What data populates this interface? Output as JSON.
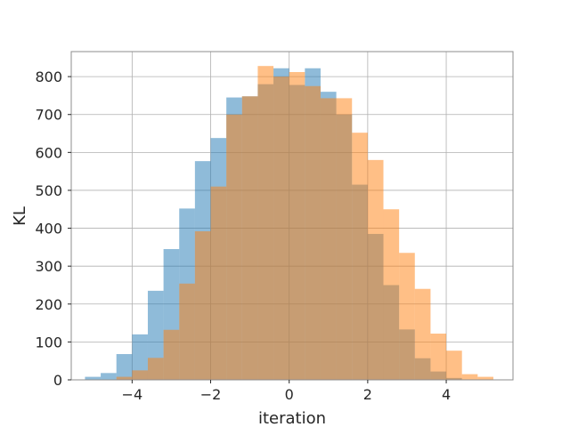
{
  "chart_data": {
    "type": "bar",
    "title": "",
    "xlabel": "iteration",
    "ylabel": "KL",
    "xlim": [
      -5.55,
      5.7
    ],
    "ylim": [
      0,
      866
    ],
    "xticks": [
      -4,
      -2,
      0,
      2,
      4
    ],
    "xtick_labels": [
      "−4",
      "−2",
      "0",
      "2",
      "4"
    ],
    "yticks": [
      0,
      100,
      200,
      300,
      400,
      500,
      600,
      700,
      800
    ],
    "ytick_labels": [
      "0",
      "100",
      "200",
      "300",
      "400",
      "500",
      "600",
      "700",
      "800"
    ],
    "grid": true,
    "legend": "none",
    "series": [
      {
        "color": "#1f77b4",
        "opacity": 0.5,
        "bins": [
          [
            -5.2,
            -4.8,
            8
          ],
          [
            -4.8,
            -4.4,
            18
          ],
          [
            -4.4,
            -4.0,
            68
          ],
          [
            -4.0,
            -3.6,
            120
          ],
          [
            -3.6,
            -3.2,
            235
          ],
          [
            -3.2,
            -2.8,
            345
          ],
          [
            -2.8,
            -2.4,
            452
          ],
          [
            -2.4,
            -2.0,
            577
          ],
          [
            -2.0,
            -1.6,
            638
          ],
          [
            -1.6,
            -1.2,
            745
          ],
          [
            -1.2,
            -0.8,
            748
          ],
          [
            -0.8,
            -0.4,
            780
          ],
          [
            -0.4,
            0.0,
            822
          ],
          [
            0.0,
            0.4,
            778
          ],
          [
            0.4,
            0.8,
            822
          ],
          [
            0.8,
            1.2,
            760
          ],
          [
            1.2,
            1.6,
            700
          ],
          [
            1.6,
            2.0,
            515
          ],
          [
            2.0,
            2.4,
            385
          ],
          [
            2.4,
            2.8,
            250
          ],
          [
            2.8,
            3.2,
            133
          ],
          [
            3.2,
            3.6,
            57
          ],
          [
            3.6,
            4.0,
            22
          ],
          [
            4.0,
            4.4,
            5
          ]
        ]
      },
      {
        "color": "#ff7f0e",
        "opacity": 0.5,
        "bins": [
          [
            -4.4,
            -4.0,
            8
          ],
          [
            -4.0,
            -3.6,
            25
          ],
          [
            -3.6,
            -3.2,
            58
          ],
          [
            -3.2,
            -2.8,
            132
          ],
          [
            -2.8,
            -2.4,
            254
          ],
          [
            -2.4,
            -2.0,
            392
          ],
          [
            -2.0,
            -1.6,
            510
          ],
          [
            -1.6,
            -1.2,
            700
          ],
          [
            -1.2,
            -0.8,
            748
          ],
          [
            -0.8,
            -0.4,
            828
          ],
          [
            -0.4,
            0.0,
            800
          ],
          [
            0.0,
            0.4,
            812
          ],
          [
            0.4,
            0.8,
            775
          ],
          [
            0.8,
            1.2,
            743
          ],
          [
            1.2,
            1.6,
            743
          ],
          [
            1.6,
            2.0,
            652
          ],
          [
            2.0,
            2.4,
            580
          ],
          [
            2.4,
            2.8,
            450
          ],
          [
            2.8,
            3.2,
            335
          ],
          [
            3.2,
            3.6,
            240
          ],
          [
            3.6,
            4.0,
            122
          ],
          [
            4.0,
            4.4,
            77
          ],
          [
            4.4,
            4.8,
            15
          ],
          [
            4.8,
            5.2,
            8
          ]
        ]
      }
    ]
  }
}
